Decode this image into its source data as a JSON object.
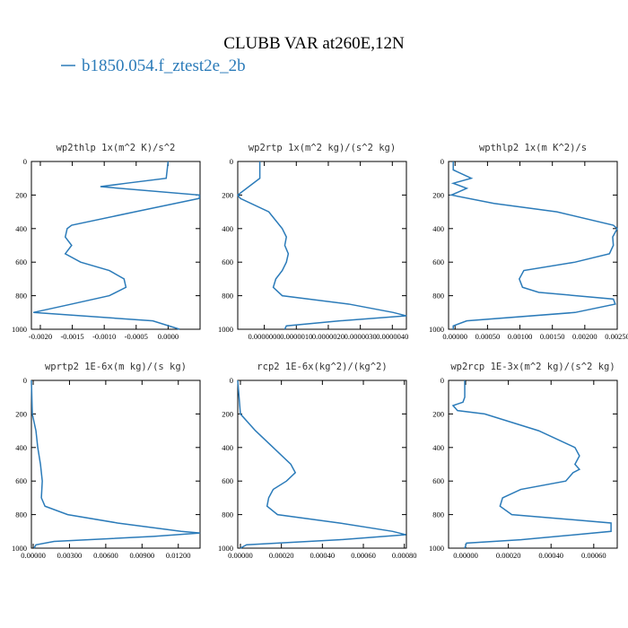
{
  "title": "CLUBB VAR at260E,12N",
  "legend": {
    "name": "b1850.054.f_ztest2e_2b",
    "color": "#2b7bb9"
  },
  "chart_data": [
    {
      "type": "line",
      "title": "wp2thlp  1x(m^2 K)/s^2",
      "xlim": [
        -0.00214,
        0.0005
      ],
      "xticks": [
        {
          "value": -0.002,
          "label": "-0.0020"
        },
        {
          "value": -0.0015,
          "label": "-0.0015"
        },
        {
          "value": -0.001,
          "label": "-0.0010"
        },
        {
          "value": -0.0005,
          "label": "-0.0005"
        },
        {
          "value": 0,
          "label": "0.0000"
        }
      ],
      "ylim": [
        0,
        1000
      ],
      "yticks": [
        0,
        200,
        400,
        600,
        800,
        1000
      ],
      "y_inverted": true,
      "series": [
        {
          "color": "#2b7bb9",
          "levels": [
            0,
            100,
            130,
            150,
            200,
            220,
            300,
            380,
            400,
            450,
            500,
            550,
            600,
            650,
            700,
            750,
            800,
            850,
            900,
            950,
            1000
          ],
          "values": [
            0,
            -3e-05,
            -0.00066,
            -0.00106,
            0.00049,
            0.00049,
            -0.00052,
            -0.00151,
            -0.00158,
            -0.00161,
            -0.00151,
            -0.00161,
            -0.00137,
            -0.00092,
            -0.00069,
            -0.00066,
            -0.00092,
            -0.00151,
            -0.00211,
            -0.00024,
            0.00018
          ]
        }
      ]
    },
    {
      "type": "line",
      "title": "wp2rtp  1x(m^2 kg)/(s^2 kg)",
      "xlim": [
        -8.3e-07,
        4.44e-06
      ],
      "xticks": [
        {
          "value": 0,
          "label": "0.0000000"
        },
        {
          "value": 1e-06,
          "label": "0.0000010"
        },
        {
          "value": 2e-06,
          "label": "0.0000020"
        },
        {
          "value": 3e-06,
          "label": "0.0000030"
        },
        {
          "value": 4e-06,
          "label": "0.0000040"
        }
      ],
      "ylim": [
        0,
        1000
      ],
      "yticks": [
        0,
        200,
        400,
        600,
        800,
        1000
      ],
      "y_inverted": true,
      "series": [
        {
          "color": "#2b7bb9",
          "levels": [
            0,
            100,
            200,
            220,
            300,
            400,
            450,
            500,
            550,
            600,
            650,
            700,
            750,
            800,
            850,
            900,
            920,
            950,
            980,
            1000
          ],
          "values": [
            -1.4e-07,
            -1.4e-07,
            -8.3e-07,
            -7.5e-07,
            1.4e-07,
            5.6e-07,
            6.9e-07,
            6.4e-07,
            7.5e-07,
            6.9e-07,
            5.6e-07,
            3.6e-07,
            2.8e-07,
            5.6e-07,
            2.64e-06,
            4.03e-06,
            4.44e-06,
            2.36e-06,
            6.9e-07,
            6.4e-07
          ]
        }
      ]
    },
    {
      "type": "line",
      "title": "wpthlp2  1x(m K^2)/s",
      "xlim": [
        -0.0001,
        0.0025
      ],
      "xticks": [
        {
          "value": 0,
          "label": "0.00000"
        },
        {
          "value": 0.0005,
          "label": "0.00050"
        },
        {
          "value": 0.001,
          "label": "0.00100"
        },
        {
          "value": 0.0015,
          "label": "0.00150"
        },
        {
          "value": 0.002,
          "label": "0.00200"
        },
        {
          "value": 0.0025,
          "label": "0.00250"
        }
      ],
      "ylim": [
        0,
        1000
      ],
      "yticks": [
        0,
        200,
        400,
        600,
        800,
        1000
      ],
      "y_inverted": true,
      "series": [
        {
          "color": "#2b7bb9",
          "levels": [
            0,
            50,
            100,
            130,
            160,
            200,
            250,
            300,
            380,
            400,
            450,
            500,
            550,
            600,
            650,
            700,
            750,
            780,
            820,
            850,
            900,
            950,
            980,
            1000
          ],
          "values": [
            -2.8e-05,
            -2.8e-05,
            0.00025,
            -2.8e-05,
            0.00018,
            -5.6e-05,
            0.0006,
            0.00157,
            0.00244,
            0.0025,
            0.00243,
            0.00244,
            0.00238,
            0.00185,
            0.00106,
            0.00099,
            0.00104,
            0.00129,
            0.00244,
            0.00247,
            0.00185,
            0.00018,
            -2.8e-05,
            -2.8e-05
          ]
        }
      ]
    },
    {
      "type": "line",
      "title": "wprtp2  1E-6x(m kg)/(s kg)",
      "xlim": [
        -0.00015,
        0.0138
      ],
      "xticks": [
        {
          "value": 0,
          "label": "0.00000"
        },
        {
          "value": 0.003,
          "label": "0.00300"
        },
        {
          "value": 0.006,
          "label": "0.00600"
        },
        {
          "value": 0.009,
          "label": "0.00900"
        },
        {
          "value": 0.012,
          "label": "0.01200"
        }
      ],
      "ylim": [
        0,
        1000
      ],
      "yticks": [
        0,
        200,
        400,
        600,
        800,
        1000
      ],
      "y_inverted": true,
      "series": [
        {
          "color": "#2b7bb9",
          "levels": [
            0,
            200,
            300,
            400,
            500,
            600,
            700,
            750,
            800,
            850,
            900,
            910,
            930,
            960,
            980,
            1000
          ],
          "values": [
            -0.00015,
            -7.5e-05,
            0.000225,
            0.000375,
            0.0006,
            0.00075,
            0.000675,
            0.000975,
            0.00285,
            0.006975,
            0.012225,
            0.0138,
            0.009975,
            0.001725,
            0.000225,
            7.5e-05
          ]
        }
      ]
    },
    {
      "type": "line",
      "title": "rcp2  1E-6x(kg^2)/(kg^2)",
      "xlim": [
        -1.3e-05,
        0.00081
      ],
      "xticks": [
        {
          "value": 0,
          "label": "0.00000"
        },
        {
          "value": 0.0002,
          "label": "0.00020"
        },
        {
          "value": 0.0004,
          "label": "0.00040"
        },
        {
          "value": 0.0006,
          "label": "0.00060"
        },
        {
          "value": 0.0008,
          "label": "0.00080"
        }
      ],
      "ylim": [
        0,
        1000
      ],
      "yticks": [
        0,
        200,
        400,
        600,
        800,
        1000
      ],
      "y_inverted": true,
      "series": [
        {
          "color": "#2b7bb9",
          "levels": [
            0,
            200,
            300,
            400,
            500,
            550,
            600,
            650,
            700,
            750,
            800,
            850,
            900,
            920,
            950,
            980,
            1000
          ],
          "values": [
            -1.3e-05,
            0,
            7.34e-05,
            0.00016,
            0.000246,
            0.000268,
            0.000225,
            0.00016,
            0.000138,
            0.00013,
            0.000181,
            0.000484,
            0.000743,
            0.000808,
            0.000484,
            3e-05,
            0
          ]
        }
      ]
    },
    {
      "type": "line",
      "title": "wp2rcp  1E-3x(m^2 kg)/(s^2 kg)",
      "xlim": [
        -8e-05,
        0.00071
      ],
      "xticks": [
        {
          "value": 0,
          "label": "0.00000"
        },
        {
          "value": 0.0002,
          "label": "0.00020"
        },
        {
          "value": 0.0004,
          "label": "0.00040"
        },
        {
          "value": 0.0006,
          "label": "0.00060"
        }
      ],
      "ylim": [
        0,
        1000
      ],
      "yticks": [
        0,
        200,
        400,
        600,
        800,
        1000
      ],
      "y_inverted": true,
      "series": [
        {
          "color": "#2b7bb9",
          "levels": [
            0,
            100,
            130,
            150,
            180,
            200,
            300,
            400,
            450,
            500,
            530,
            550,
            600,
            650,
            700,
            750,
            800,
            850,
            900,
            950,
            970,
            1000
          ],
          "values": [
            -4.2e-06,
            -4.2e-06,
            -1.27e-05,
            -5.92e-05,
            -3.8e-05,
            8.88e-05,
            0.000342,
            0.000512,
            0.000533,
            0.000512,
            0.000533,
            0.000503,
            0.000469,
            0.000258,
            0.000173,
            0.000161,
            0.000216,
            0.000681,
            0.000681,
            0.000258,
            4.2e-06,
            -4.2e-06
          ]
        }
      ]
    }
  ]
}
